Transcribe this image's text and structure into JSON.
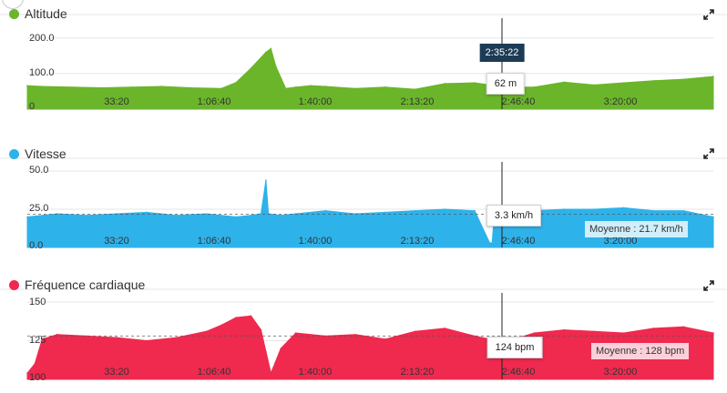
{
  "cursor_time": "2:35:22",
  "chart_data": [
    {
      "type": "area",
      "title": "Altitude",
      "color": "#6bb52b",
      "x_tick_labels": [
        "33:20",
        "1:06:40",
        "1:40:00",
        "2:13:20",
        "2:46:40",
        "3:20:00"
      ],
      "y_tick_labels": [
        "200.0",
        "100.0",
        "0"
      ],
      "y_ticks": [
        200,
        100,
        0
      ],
      "ylim": [
        0,
        230
      ],
      "xlim": [
        0,
        13800
      ],
      "grid": true,
      "tooltip": "62 m",
      "x": [
        0,
        300,
        900,
        1500,
        2100,
        2700,
        3300,
        3900,
        4200,
        4500,
        4800,
        4900,
        5000,
        5200,
        5400,
        5700,
        6000,
        6600,
        7200,
        7800,
        8400,
        9000,
        9600,
        10200,
        10800,
        11400,
        12000,
        12600,
        13200,
        13800
      ],
      "values": [
        66,
        64,
        62,
        60,
        62,
        64,
        60,
        58,
        75,
        115,
        160,
        170,
        120,
        58,
        62,
        66,
        64,
        58,
        62,
        56,
        72,
        74,
        62,
        62,
        76,
        68,
        74,
        80,
        84,
        92
      ]
    },
    {
      "type": "area",
      "title": "Vitesse",
      "color": "#2eb2ea",
      "x_tick_labels": [
        "33:20",
        "1:06:40",
        "1:40:00",
        "2:13:20",
        "2:46:40",
        "3:20:00"
      ],
      "y_tick_labels": [
        "50.0",
        "25.0",
        "0.0"
      ],
      "y_ticks": [
        50,
        25,
        0
      ],
      "ylim": [
        0,
        50
      ],
      "xlim": [
        0,
        13800
      ],
      "grid": true,
      "average": 21.7,
      "average_label": "Moyenne : 21.7 km/h",
      "tooltip": "3.3 km/h",
      "x": [
        0,
        600,
        1200,
        1800,
        2400,
        3000,
        3600,
        4200,
        4500,
        4700,
        4800,
        4850,
        5100,
        5400,
        6000,
        6600,
        7200,
        7800,
        8400,
        9000,
        9300,
        9350,
        9400,
        9600,
        10200,
        10800,
        11400,
        12000,
        12600,
        13200,
        13800
      ],
      "values": [
        20,
        22,
        21,
        22,
        23,
        21,
        22,
        20,
        21,
        22,
        44,
        22,
        21,
        22,
        24,
        22,
        23,
        24,
        25,
        24,
        3,
        3,
        24,
        25,
        24,
        25,
        25,
        26,
        24,
        24,
        20
      ]
    },
    {
      "type": "area",
      "title": "Fréquence cardiaque",
      "color": "#f0294f",
      "x_tick_labels": [
        "33:20",
        "1:06:40",
        "1:40:00",
        "2:13:20",
        "2:46:40",
        "3:20:00"
      ],
      "y_tick_labels": [
        "150",
        "125",
        "100"
      ],
      "y_ticks": [
        150,
        125,
        100
      ],
      "ylim": [
        100,
        150
      ],
      "xlim": [
        0,
        13800
      ],
      "grid": true,
      "average": 128,
      "average_label": "Moyenne : 128 bpm",
      "tooltip": "124 bpm",
      "x": [
        0,
        150,
        300,
        600,
        1200,
        1800,
        2400,
        3000,
        3600,
        3900,
        4200,
        4500,
        4700,
        4800,
        4900,
        5100,
        5400,
        6000,
        6600,
        7200,
        7800,
        8400,
        9000,
        9600,
        10200,
        10800,
        11400,
        12000,
        12600,
        13200,
        13800
      ],
      "values": [
        104,
        110,
        126,
        129,
        128,
        127,
        125,
        127,
        131,
        135,
        140,
        141,
        132,
        118,
        104,
        120,
        130,
        128,
        129,
        126,
        131,
        133,
        128,
        124,
        130,
        132,
        131,
        130,
        133,
        134,
        130
      ]
    }
  ],
  "icons": [
    "expand-icon"
  ]
}
